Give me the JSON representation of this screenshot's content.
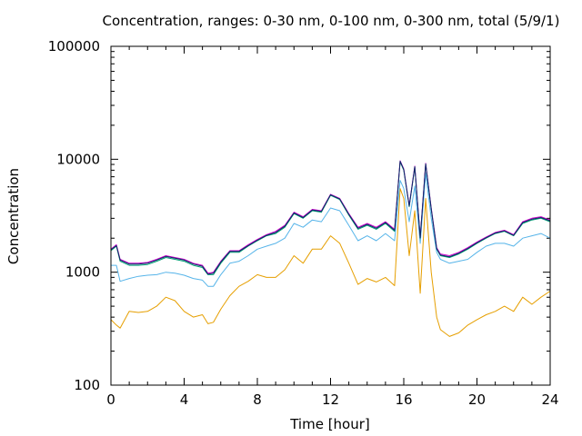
{
  "chart_data": {
    "type": "line",
    "title": "Concentration, ranges: 0-30 nm, 0-100 nm, 0-300 nm, total (5/9/1)",
    "xlabel": "Time [hour]",
    "ylabel": "Concentration",
    "xlim": [
      0,
      24
    ],
    "ylim": [
      100,
      100000
    ],
    "yscale": "log",
    "grid": false,
    "legend": "none",
    "x_ticks": [
      0,
      4,
      8,
      12,
      16,
      20,
      24
    ],
    "x_tick_labels": [
      "0",
      "4",
      "8",
      "12",
      "16",
      "20",
      "24"
    ],
    "y_ticks": [
      100,
      1000,
      10000,
      100000
    ],
    "y_tick_labels": [
      "100",
      "1000",
      "10000",
      "100000"
    ],
    "x": [
      0,
      0.3,
      0.5,
      1,
      1.5,
      2,
      2.5,
      3,
      3.5,
      4,
      4.5,
      5,
      5.3,
      5.6,
      6,
      6.5,
      7,
      7.5,
      8,
      8.5,
      9,
      9.5,
      10,
      10.5,
      11,
      11.5,
      12,
      12.5,
      13,
      13.5,
      14,
      14.5,
      15,
      15.5,
      15.8,
      16,
      16.3,
      16.6,
      16.9,
      17.2,
      17.5,
      17.8,
      18,
      18.5,
      19,
      19.5,
      20,
      20.5,
      21,
      21.5,
      22,
      22.5,
      23,
      23.5,
      24
    ],
    "series": [
      {
        "color": "#e69f00",
        "values": [
          380,
          340,
          320,
          450,
          440,
          450,
          500,
          600,
          560,
          450,
          400,
          420,
          350,
          360,
          470,
          620,
          750,
          830,
          950,
          900,
          900,
          1050,
          1400,
          1200,
          1600,
          1600,
          2100,
          1800,
          1200,
          780,
          880,
          820,
          900,
          760,
          5500,
          4500,
          1400,
          3500,
          650,
          4500,
          1000,
          400,
          310,
          270,
          290,
          340,
          380,
          420,
          450,
          500,
          450,
          600,
          520,
          600,
          680
        ]
      },
      {
        "color": "#56b4e9",
        "values": [
          1150,
          1150,
          830,
          880,
          920,
          940,
          950,
          1000,
          980,
          940,
          880,
          850,
          750,
          750,
          950,
          1200,
          1250,
          1400,
          1600,
          1700,
          1800,
          2000,
          2700,
          2500,
          2900,
          2800,
          3700,
          3500,
          2600,
          1900,
          2100,
          1900,
          2200,
          1900,
          6500,
          5500,
          2800,
          5800,
          1800,
          7500,
          3000,
          1500,
          1300,
          1200,
          1250,
          1300,
          1500,
          1700,
          1800,
          1800,
          1700,
          2000,
          2100,
          2200,
          2000
        ]
      },
      {
        "color": "#009e73",
        "values": [
          1550,
          1700,
          1250,
          1150,
          1150,
          1170,
          1250,
          1350,
          1300,
          1250,
          1150,
          1100,
          950,
          950,
          1200,
          1500,
          1500,
          1700,
          1900,
          2100,
          2200,
          2500,
          3300,
          3000,
          3500,
          3400,
          4800,
          4400,
          3200,
          2400,
          2600,
          2400,
          2700,
          2300,
          9500,
          8000,
          3800,
          8500,
          2000,
          9000,
          3600,
          1600,
          1400,
          1350,
          1450,
          1600,
          1800,
          2000,
          2200,
          2300,
          2100,
          2700,
          2900,
          3000,
          2800
        ]
      },
      {
        "color": "#cc00cc",
        "values": [
          1600,
          1750,
          1300,
          1200,
          1200,
          1220,
          1300,
          1400,
          1350,
          1300,
          1200,
          1150,
          980,
          1000,
          1250,
          1550,
          1550,
          1750,
          1950,
          2150,
          2300,
          2600,
          3400,
          3100,
          3600,
          3500,
          4900,
          4500,
          3300,
          2500,
          2700,
          2500,
          2800,
          2400,
          9700,
          8200,
          3900,
          8700,
          2050,
          9200,
          3700,
          1650,
          1450,
          1400,
          1500,
          1650,
          1850,
          2050,
          2250,
          2350,
          2150,
          2800,
          3000,
          3100,
          2900
        ]
      },
      {
        "color": "#0a2a66",
        "values": [
          1580,
          1720,
          1280,
          1180,
          1180,
          1200,
          1280,
          1380,
          1330,
          1280,
          1180,
          1130,
          960,
          980,
          1230,
          1530,
          1530,
          1720,
          1920,
          2120,
          2250,
          2550,
          3350,
          3050,
          3550,
          3450,
          4850,
          4450,
          3250,
          2450,
          2650,
          2450,
          2750,
          2350,
          9600,
          8100,
          3850,
          8600,
          2020,
          9100,
          3650,
          1620,
          1420,
          1370,
          1470,
          1620,
          1820,
          2020,
          2220,
          2320,
          2120,
          2750,
          2950,
          3050,
          2850
        ]
      }
    ]
  }
}
